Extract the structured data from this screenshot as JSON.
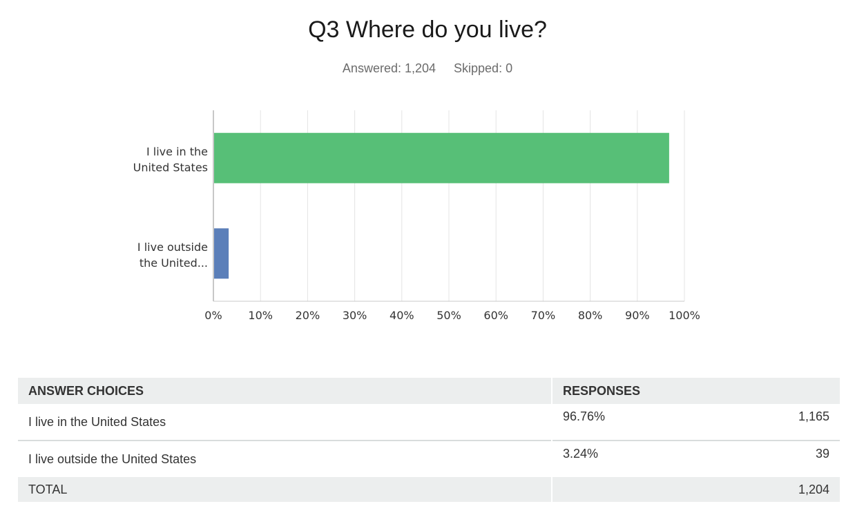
{
  "question": {
    "title": "Q3 Where do you live?",
    "answered": "Answered: 1,204",
    "skipped": "Skipped: 0"
  },
  "chart_data": {
    "type": "bar",
    "orientation": "horizontal",
    "categories": [
      "I live in the United States",
      "I live outside the United States"
    ],
    "category_labels": [
      [
        "I live in the",
        "United States"
      ],
      [
        "I live outside",
        "the United..."
      ]
    ],
    "values": [
      96.76,
      3.24
    ],
    "colors": [
      "#57bf77",
      "#5b7fb9"
    ],
    "xlim": [
      0,
      100
    ],
    "xticks": [
      "0%",
      "10%",
      "20%",
      "30%",
      "40%",
      "50%",
      "60%",
      "70%",
      "80%",
      "90%",
      "100%"
    ],
    "grid": true
  },
  "table": {
    "headers": {
      "choices": "ANSWER CHOICES",
      "responses": "RESPONSES"
    },
    "rows": [
      {
        "choice": "I live in the United States",
        "percent": "96.76%",
        "count": "1,165"
      },
      {
        "choice": "I live outside the United States",
        "percent": "3.24%",
        "count": "39"
      }
    ],
    "total_label": "TOTAL",
    "total_count": "1,204"
  }
}
